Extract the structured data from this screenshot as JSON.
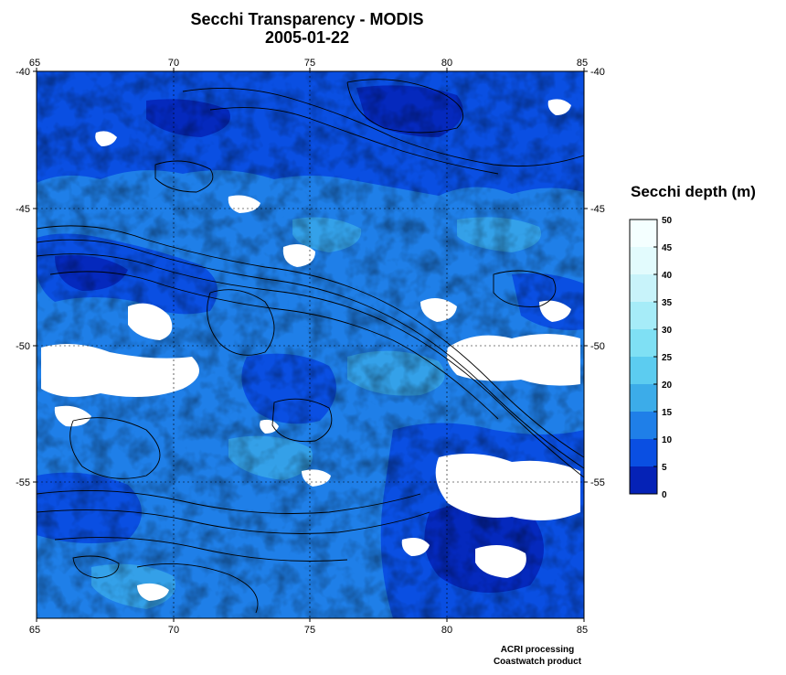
{
  "title": "Secchi Transparency - MODIS",
  "subtitle": "2005-01-22",
  "map": {
    "lon_range": [
      65,
      85
    ],
    "lat_range": [
      -40,
      -60
    ],
    "lon_ticks": [
      "65",
      "70",
      "75",
      "80",
      "85"
    ],
    "lat_ticks": [
      "-40",
      "-45",
      "-50",
      "-55"
    ],
    "grid": "dashed",
    "land_color": "#ffffff",
    "contour_color": "#000000"
  },
  "colorbar": {
    "title": "Secchi depth (m)",
    "ticks": [
      "50",
      "45",
      "40",
      "35",
      "30",
      "25",
      "20",
      "15",
      "10",
      "5",
      "0"
    ],
    "colors_top_to_bottom": [
      "#f4ffff",
      "#e2fbfd",
      "#c8f3fa",
      "#a6ecf8",
      "#7fe0f4",
      "#5cccf0",
      "#3cace9",
      "#1f7fe8",
      "#0a4fe2",
      "#0522b6"
    ]
  },
  "credits": {
    "line1": "ACRI processing",
    "line2": "Coastwatch product"
  }
}
